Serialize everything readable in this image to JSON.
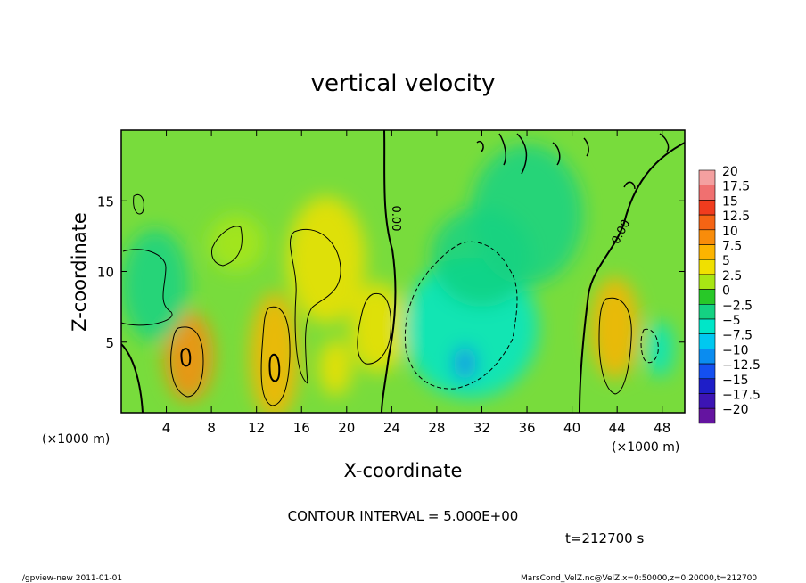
{
  "chart_data": {
    "type": "heatmap",
    "title": "vertical velocity",
    "xlabel": "X-coordinate",
    "ylabel": "Z-coordinate",
    "x_unit": "(×1000 m)",
    "y_unit": "(×1000 m)",
    "xlim": [
      0,
      50
    ],
    "ylim": [
      0,
      20
    ],
    "x_ticks": [
      4,
      8,
      12,
      16,
      20,
      24,
      28,
      32,
      36,
      40,
      44,
      48
    ],
    "y_ticks": [
      5,
      10,
      15
    ],
    "contour_interval_label": "CONTOUR INTERVAL = 5.000E+00",
    "contour_labels": [
      "0.00",
      "0.00"
    ],
    "colorbar": {
      "levels": [
        "20",
        "17.5",
        "15",
        "12.5",
        "10",
        "7.5",
        "5",
        "2.5",
        "0",
        "-2.5",
        "-5",
        "-7.5",
        "-10",
        "-12.5",
        "-15",
        "-17.5",
        "-20"
      ],
      "colors": [
        "#f4a0a0",
        "#f07070",
        "#f03c1e",
        "#f56414",
        "#f88c0a",
        "#fcb400",
        "#f0e000",
        "#a8e614",
        "#28c828",
        "#14d282",
        "#00e6c8",
        "#00c8f0",
        "#0a8cf0",
        "#1450f0",
        "#1e1ec8",
        "#3c14b4",
        "#6414a0"
      ]
    },
    "blobs": [
      {
        "x": 6,
        "z": 4,
        "rx": 2.2,
        "rz": 3.2,
        "value": 9
      },
      {
        "x": 13.6,
        "z": 4,
        "rx": 2.2,
        "rz": 4.5,
        "value": 8
      },
      {
        "x": 18.2,
        "z": 10.8,
        "rx": 3.5,
        "rz": 4.5,
        "value": 5.5
      },
      {
        "x": 22.8,
        "z": 6,
        "rx": 2.5,
        "rz": 3.2,
        "value": 6
      },
      {
        "x": 19,
        "z": 3.2,
        "rx": 1.5,
        "rz": 2,
        "value": 4
      },
      {
        "x": 43.8,
        "z": 6,
        "rx": 2.2,
        "rz": 3.6,
        "value": 8.5
      },
      {
        "x": 10.2,
        "z": 12,
        "rx": 2.5,
        "rz": 2,
        "value": 2.5
      },
      {
        "x": 31,
        "z": 6,
        "rx": 6,
        "rz": 5,
        "value": -6
      },
      {
        "x": 32,
        "z": 11,
        "rx": 4.5,
        "rz": 3.5,
        "value": -3
      },
      {
        "x": 30.5,
        "z": 3.5,
        "rx": 1,
        "rz": 1.2,
        "value": -9
      },
      {
        "x": 47.8,
        "z": 4.5,
        "rx": 1.2,
        "rz": 2,
        "value": -4
      },
      {
        "x": 36,
        "z": 14,
        "rx": 5,
        "rz": 5,
        "value": -1.5
      },
      {
        "x": 3,
        "z": 9,
        "rx": 3,
        "rz": 4,
        "value": -1.5
      }
    ]
  },
  "footer": {
    "time_label": "t=212700 s",
    "program": "./gpview-new  2011-01-01",
    "source": "MarsCond_VelZ.nc@VelZ,x=0:50000,z=0:20000,t=212700"
  }
}
